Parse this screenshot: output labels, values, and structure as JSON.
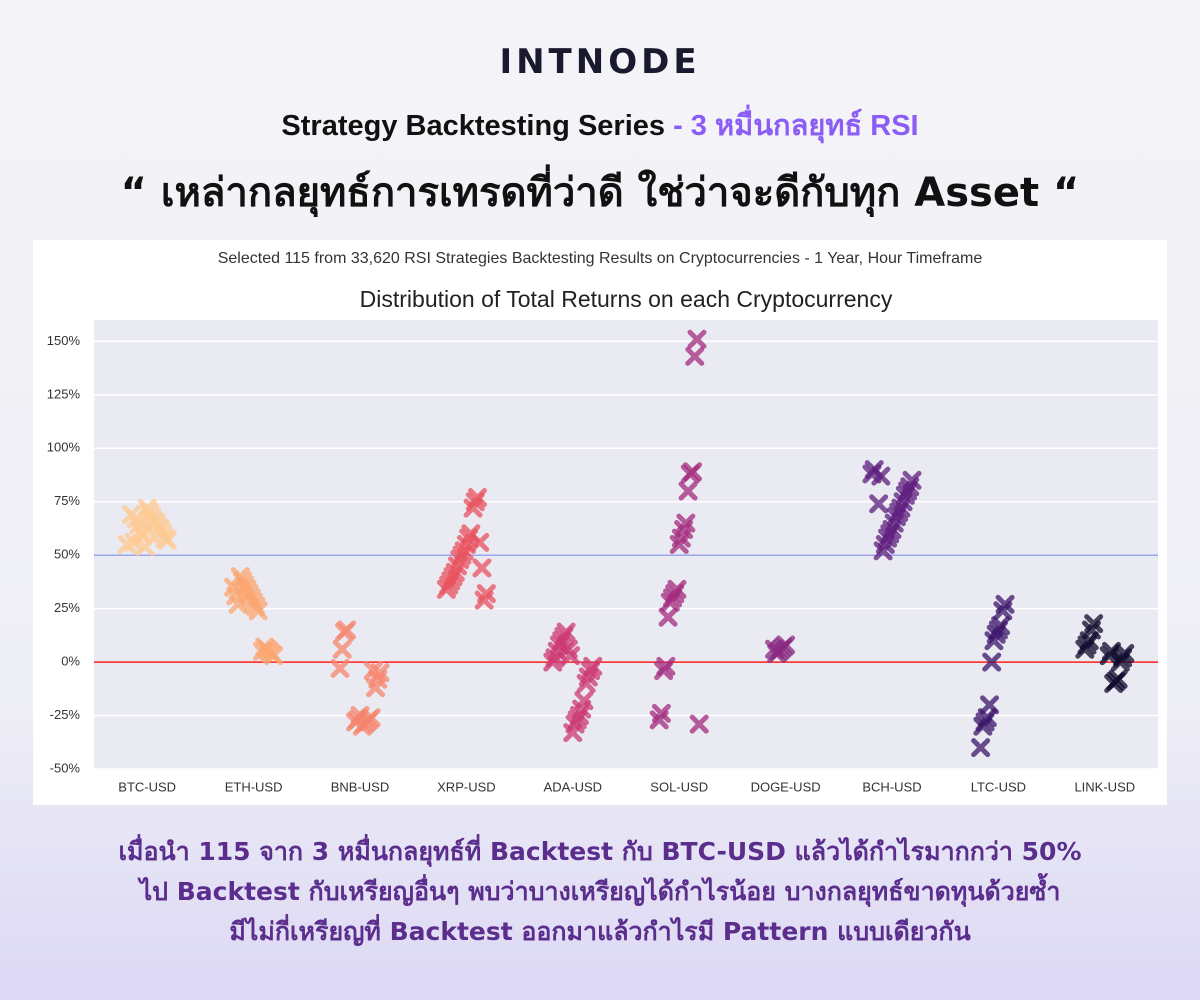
{
  "header": {
    "logo": "INTNODE",
    "series_title": "Strategy Backtesting Series",
    "series_subtitle": "- 3 หมื่นกลยุทธ์ RSI",
    "quote": "“ เหล่ากลยุทธ์การเทรดที่ว่าดี ใช่ว่าจะดีกับทุก Asset “"
  },
  "chart_data": {
    "type": "strip",
    "subtitle": "Selected 115 from 33,620 RSI Strategies Backtesting Results on Cryptocurrencies - 1 Year, Hour Timeframe",
    "title": "Distribution of Total Returns on each Cryptocurrency",
    "categories": [
      "BTC-USD",
      "ETH-USD",
      "BNB-USD",
      "XRP-USD",
      "ADA-USD",
      "SOL-USD",
      "DOGE-USD",
      "BCH-USD",
      "LTC-USD",
      "LINK-USD"
    ],
    "colors": [
      "#fdca93",
      "#fba670",
      "#f6846c",
      "#e8525f",
      "#cc3a72",
      "#a32b7e",
      "#8a2a82",
      "#5e1d7d",
      "#3b1569",
      "#0f0b2e"
    ],
    "values": [
      [
        55,
        57,
        58,
        60,
        62,
        63,
        65,
        66,
        68,
        70,
        72,
        54,
        59,
        61,
        64,
        67,
        56,
        69
      ],
      [
        24,
        26,
        28,
        30,
        32,
        34,
        36,
        38,
        40,
        27,
        31,
        35,
        3,
        4,
        5,
        6,
        7,
        5
      ],
      [
        15,
        14,
        6,
        -3,
        -5,
        -8,
        -12,
        -4,
        -26,
        -27,
        -28,
        -29,
        -30,
        -25,
        -27,
        -28
      ],
      [
        77,
        75,
        72,
        60,
        58,
        55,
        52,
        50,
        48,
        45,
        42,
        40,
        38,
        36,
        34,
        32,
        29,
        44,
        56
      ],
      [
        14,
        12,
        10,
        8,
        5,
        2,
        0,
        -2,
        -4,
        -7,
        -10,
        -18,
        -22,
        -25,
        -27,
        -29,
        -33,
        3,
        6
      ],
      [
        151,
        143,
        89,
        88,
        80,
        65,
        62,
        58,
        55,
        34,
        32,
        30,
        28,
        21,
        -2,
        -4,
        -24,
        -27,
        -29
      ],
      [
        8,
        7,
        6,
        5,
        4,
        6
      ],
      [
        90,
        88,
        85,
        82,
        80,
        78,
        75,
        72,
        70,
        68,
        65,
        62,
        60,
        58,
        55,
        52,
        87,
        74
      ],
      [
        27,
        24,
        17,
        15,
        13,
        10,
        0,
        -20,
        -26,
        -28,
        -30,
        -40
      ],
      [
        18,
        15,
        10,
        8,
        6,
        4,
        2,
        0,
        -8,
        -9,
        -10,
        5,
        3
      ]
    ],
    "reference_lines": [
      {
        "value": 50,
        "color": "#9aa6f0"
      },
      {
        "value": 0,
        "color": "#ff1a1a"
      }
    ],
    "ylim": [
      -50,
      160
    ],
    "yticks": [
      {
        "value": -50,
        "label": "-50%"
      },
      {
        "value": -25,
        "label": "-25%"
      },
      {
        "value": 0,
        "label": "0%"
      },
      {
        "value": 25,
        "label": "25%"
      },
      {
        "value": 50,
        "label": "50%"
      },
      {
        "value": 75,
        "label": "75%"
      },
      {
        "value": 100,
        "label": "100%"
      },
      {
        "value": 125,
        "label": "125%"
      },
      {
        "value": 150,
        "label": "150%"
      }
    ],
    "grid": true
  },
  "footer": {
    "lines": [
      "เมื่อนำ 115 จาก 3 หมื่นกลยุทธ์ที่ Backtest กับ BTC-USD แล้วได้กำไรมากกว่า 50%",
      "ไป Backtest กับเหรียญอื่นๆ พบว่าบางเหรียญได้กำไรน้อย บางกลยุทธ์ขาดทุนด้วยซ้ำ",
      "มีไม่กี่เหรียญที่ Backtest ออกมาแล้วกำไรมี Pattern แบบเดียวกัน"
    ]
  }
}
